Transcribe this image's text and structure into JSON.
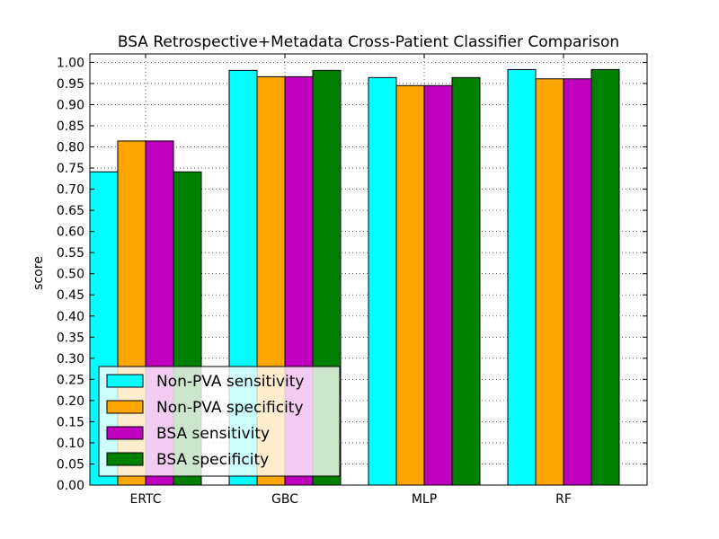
{
  "chart_data": {
    "type": "bar",
    "title": "BSA Retrospective+Metadata Cross-Patient Classifier Comparison",
    "xlabel": "",
    "ylabel": "score",
    "categories": [
      "ERTC",
      "GBC",
      "MLP",
      "RF"
    ],
    "series": [
      {
        "name": "Non-PVA sensitivity",
        "color": "#00ffff",
        "values": [
          0.741,
          0.981,
          0.964,
          0.983
        ]
      },
      {
        "name": "Non-PVA specificity",
        "color": "#ffa500",
        "values": [
          0.814,
          0.966,
          0.945,
          0.961
        ]
      },
      {
        "name": "BSA sensitivity",
        "color": "#bf00bf",
        "values": [
          0.814,
          0.966,
          0.945,
          0.961
        ]
      },
      {
        "name": "BSA specificity",
        "color": "#008000",
        "values": [
          0.741,
          0.981,
          0.964,
          0.983
        ]
      }
    ],
    "ylim": [
      0,
      1.02
    ],
    "yticks": [
      "0.00",
      "0.05",
      "0.10",
      "0.15",
      "0.20",
      "0.25",
      "0.30",
      "0.35",
      "0.40",
      "0.45",
      "0.50",
      "0.55",
      "0.60",
      "0.65",
      "0.70",
      "0.75",
      "0.80",
      "0.85",
      "0.90",
      "0.95",
      "1.00"
    ],
    "grid": true,
    "legend_position": "lower-left"
  }
}
